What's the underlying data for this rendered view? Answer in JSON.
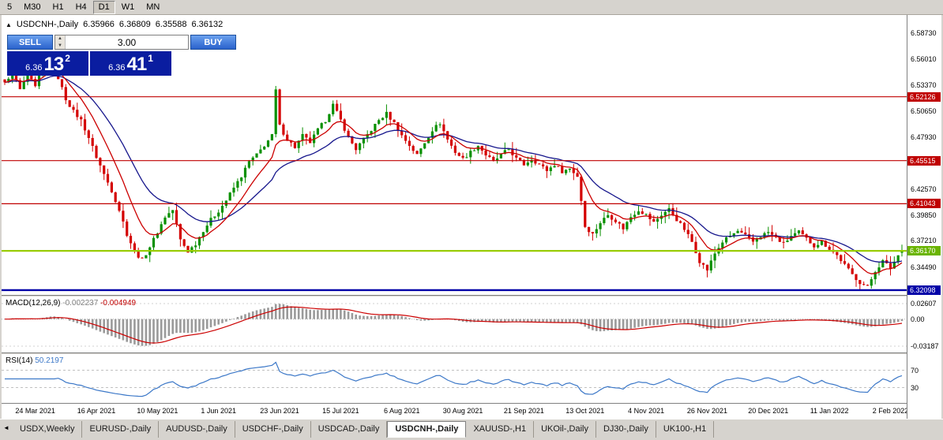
{
  "toolbar": {
    "timeframes": [
      "5",
      "M30",
      "H1",
      "H4",
      "D1",
      "W1",
      "MN"
    ],
    "active_timeframe": "D1"
  },
  "chart_header": {
    "collapse_arrow": "▲",
    "title": "USDCNH-,Daily",
    "open": "6.35966",
    "high": "6.36809",
    "low": "6.35588",
    "close": "6.36132"
  },
  "trade_panel": {
    "sell_label": "SELL",
    "buy_label": "BUY",
    "volume": "3.00",
    "sell_price_prefix": "6.36",
    "sell_price_big": "13",
    "sell_price_sup": "2",
    "buy_price_prefix": "6.36",
    "buy_price_big": "41",
    "buy_price_sup": "1"
  },
  "macd_panel": {
    "label": "MACD(12,26,9)",
    "main_value": "-0.002237",
    "signal_value": "-0.004949",
    "axis_top": "0.02607",
    "axis_zero": "0.00",
    "axis_bottom": "-0.03187"
  },
  "rsi_panel": {
    "label": "RSI(14)",
    "value": "50.2197",
    "level_top": "70",
    "level_bottom": "30"
  },
  "tabs": {
    "scroll_left_icon": "◄",
    "items": [
      "USDX,Weekly",
      "EURUSD-,Daily",
      "AUDUSD-,Daily",
      "USDCHF-,Daily",
      "USDCAD-,Daily",
      "USDCNH-,Daily",
      "XAUUSD-,H1",
      "UKOil-,Daily",
      "DJ30-,Daily",
      "UK100-,H1"
    ],
    "active": "USDCNH-,Daily"
  },
  "chart_data": {
    "type": "candlestick",
    "symbol": "USDCNH-",
    "timeframe": "Daily",
    "current_bar": {
      "open": 6.35966,
      "high": 6.36809,
      "low": 6.35588,
      "close": 6.36132
    },
    "y_range": [
      6.316,
      6.606
    ],
    "price_ticks": [
      "6.58730",
      "6.56010",
      "6.53370",
      "6.50650",
      "6.47930",
      "6.42570",
      "6.39850",
      "6.37210",
      "6.34490"
    ],
    "price_badges": [
      {
        "value": "6.52126",
        "price": 6.52126,
        "color": "#c00000"
      },
      {
        "value": "6.45515",
        "price": 6.45515,
        "color": "#c00000"
      },
      {
        "value": "6.41043",
        "price": 6.41043,
        "color": "#c00000"
      },
      {
        "value": "6.36170",
        "price": 6.3617,
        "color": "#6ab400"
      },
      {
        "value": "6.32098",
        "price": 6.32098,
        "color": "#0000a8"
      }
    ],
    "h_lines": [
      {
        "price": 6.52126,
        "color": "#c00000",
        "width": 1.2
      },
      {
        "price": 6.45515,
        "color": "#c00000",
        "width": 1.2
      },
      {
        "price": 6.41043,
        "color": "#c00000",
        "width": 1.2
      },
      {
        "price": 6.3617,
        "color": "#9acd00",
        "width": 2.2
      },
      {
        "price": 6.32098,
        "color": "#0000a8",
        "width": 2.4
      }
    ],
    "x_labels": [
      "24 Mar 2021",
      "16 Apr 2021",
      "10 May 2021",
      "1 Jun 2021",
      "23 Jun 2021",
      "15 Jul 2021",
      "6 Aug 2021",
      "30 Aug 2021",
      "21 Sep 2021",
      "13 Oct 2021",
      "4 Nov 2021",
      "26 Nov 2021",
      "20 Dec 2021",
      "11 Jan 2022",
      "2 Feb 2022"
    ],
    "total_bars": 236,
    "first_label_bar": 8,
    "bars_per_label": 16,
    "close_anchors": [
      [
        0,
        6.535
      ],
      [
        2,
        6.548
      ],
      [
        4,
        6.528
      ],
      [
        6,
        6.545
      ],
      [
        8,
        6.531
      ],
      [
        10,
        6.552
      ],
      [
        12,
        6.561
      ],
      [
        14,
        6.541
      ],
      [
        16,
        6.519
      ],
      [
        18,
        6.506
      ],
      [
        20,
        6.497
      ],
      [
        22,
        6.479
      ],
      [
        24,
        6.459
      ],
      [
        26,
        6.441
      ],
      [
        28,
        6.424
      ],
      [
        30,
        6.404
      ],
      [
        32,
        6.379
      ],
      [
        34,
        6.361
      ],
      [
        36,
        6.352
      ],
      [
        38,
        6.366
      ],
      [
        40,
        6.381
      ],
      [
        42,
        6.397
      ],
      [
        44,
        6.404
      ],
      [
        46,
        6.373
      ],
      [
        48,
        6.361
      ],
      [
        50,
        6.369
      ],
      [
        52,
        6.383
      ],
      [
        54,
        6.394
      ],
      [
        56,
        6.403
      ],
      [
        58,
        6.414
      ],
      [
        60,
        6.427
      ],
      [
        62,
        6.439
      ],
      [
        64,
        6.454
      ],
      [
        66,
        6.461
      ],
      [
        68,
        6.471
      ],
      [
        70,
        6.481
      ],
      [
        71,
        6.528
      ],
      [
        72,
        6.491
      ],
      [
        74,
        6.477
      ],
      [
        76,
        6.469
      ],
      [
        78,
        6.481
      ],
      [
        80,
        6.474
      ],
      [
        82,
        6.487
      ],
      [
        84,
        6.497
      ],
      [
        86,
        6.513
      ],
      [
        88,
        6.497
      ],
      [
        90,
        6.479
      ],
      [
        92,
        6.467
      ],
      [
        94,
        6.477
      ],
      [
        96,
        6.487
      ],
      [
        98,
        6.497
      ],
      [
        100,
        6.504
      ],
      [
        102,
        6.494
      ],
      [
        104,
        6.481
      ],
      [
        106,
        6.471
      ],
      [
        108,
        6.461
      ],
      [
        110,
        6.474
      ],
      [
        112,
        6.487
      ],
      [
        114,
        6.494
      ],
      [
        116,
        6.477
      ],
      [
        118,
        6.464
      ],
      [
        120,
        6.457
      ],
      [
        122,
        6.464
      ],
      [
        124,
        6.471
      ],
      [
        126,
        6.461
      ],
      [
        128,
        6.454
      ],
      [
        130,
        6.461
      ],
      [
        132,
        6.467
      ],
      [
        134,
        6.457
      ],
      [
        136,
        6.451
      ],
      [
        138,
        6.457
      ],
      [
        140,
        6.451
      ],
      [
        142,
        6.445
      ],
      [
        144,
        6.451
      ],
      [
        146,
        6.444
      ],
      [
        148,
        6.447
      ],
      [
        150,
        6.439
      ],
      [
        151,
        6.414
      ],
      [
        152,
        6.387
      ],
      [
        154,
        6.379
      ],
      [
        156,
        6.391
      ],
      [
        158,
        6.399
      ],
      [
        160,
        6.393
      ],
      [
        162,
        6.385
      ],
      [
        164,
        6.397
      ],
      [
        166,
        6.404
      ],
      [
        168,
        6.399
      ],
      [
        170,
        6.391
      ],
      [
        172,
        6.399
      ],
      [
        174,
        6.405
      ],
      [
        176,
        6.394
      ],
      [
        178,
        6.384
      ],
      [
        180,
        6.371
      ],
      [
        182,
        6.351
      ],
      [
        184,
        6.342
      ],
      [
        186,
        6.359
      ],
      [
        188,
        6.371
      ],
      [
        190,
        6.377
      ],
      [
        192,
        6.382
      ],
      [
        194,
        6.377
      ],
      [
        196,
        6.371
      ],
      [
        198,
        6.377
      ],
      [
        200,
        6.381
      ],
      [
        202,
        6.375
      ],
      [
        204,
        6.369
      ],
      [
        206,
        6.377
      ],
      [
        208,
        6.381
      ],
      [
        210,
        6.374
      ],
      [
        212,
        6.367
      ],
      [
        214,
        6.371
      ],
      [
        216,
        6.364
      ],
      [
        218,
        6.357
      ],
      [
        220,
        6.347
      ],
      [
        222,
        6.337
      ],
      [
        224,
        6.329
      ],
      [
        226,
        6.324
      ],
      [
        228,
        6.341
      ],
      [
        230,
        6.351
      ],
      [
        232,
        6.344
      ],
      [
        234,
        6.357
      ],
      [
        235,
        6.361
      ]
    ],
    "up_color": "#089000",
    "down_color": "#d40000",
    "ma_fast": {
      "period": 10,
      "color": "#cc0000"
    },
    "ma_slow": {
      "period": 24,
      "color": "#16168c"
    },
    "macd": {
      "fast": 12,
      "slow": 26,
      "signal": 9,
      "hist_color": "#9a9a9a",
      "signal_color": "#cc0000",
      "last_main": -0.002237,
      "last_signal": -0.004949
    },
    "rsi": {
      "period": 14,
      "color": "#3c78c8",
      "levels": [
        70,
        30
      ],
      "last_value": 50.2197
    }
  }
}
